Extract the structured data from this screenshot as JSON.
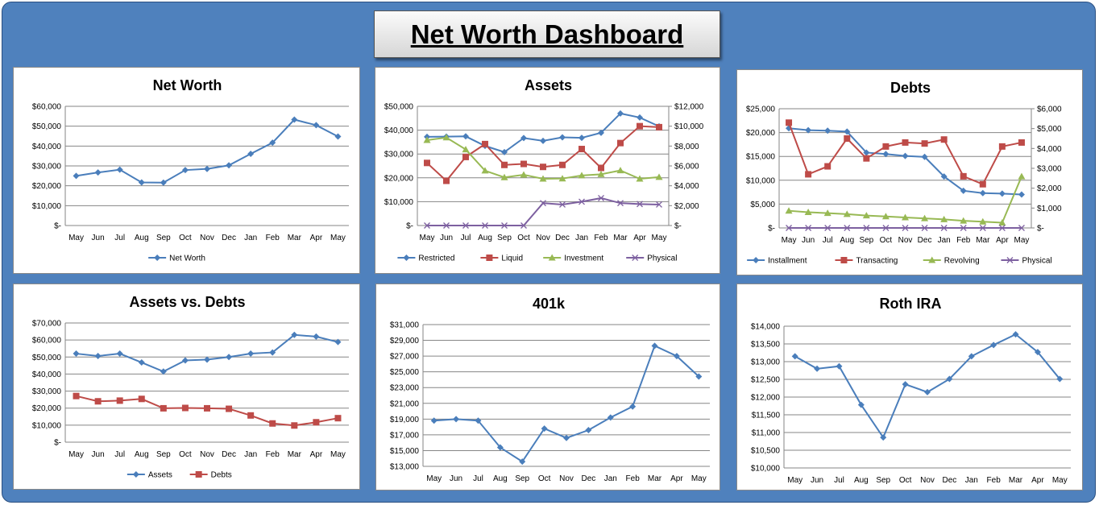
{
  "dashboard": {
    "title": "Net Worth Dashboard"
  },
  "colors": {
    "background": "#4f81bd",
    "blue": "#4a7ebb",
    "red": "#be4b48",
    "green": "#98b954",
    "purple": "#7d60a0"
  },
  "chart_data": [
    {
      "id": "networth",
      "type": "line",
      "title": "Net Worth",
      "categories": [
        "May",
        "Jun",
        "Jul",
        "Aug",
        "Sep",
        "Oct",
        "Nov",
        "Dec",
        "Jan",
        "Feb",
        "Mar",
        "Apr",
        "May"
      ],
      "left_axis": {
        "ylim": [
          0,
          60000
        ],
        "ticks": [
          "$60,000",
          "$50,000",
          "$40,000",
          "$30,000",
          "$20,000",
          "$10,000",
          "$-"
        ]
      },
      "series": [
        {
          "name": "Net Worth",
          "color": "#4a7ebb",
          "marker": "diamond",
          "axis": "left",
          "values": [
            25000,
            26700,
            28100,
            21700,
            21600,
            27900,
            28500,
            30300,
            36100,
            41700,
            53300,
            50500,
            44800
          ]
        }
      ],
      "legend": "bottom"
    },
    {
      "id": "assets",
      "type": "line",
      "title": "Assets",
      "categories": [
        "May",
        "Jun",
        "Jul",
        "Aug",
        "Sep",
        "Oct",
        "Nov",
        "Dec",
        "Jan",
        "Feb",
        "Mar",
        "Apr",
        "May"
      ],
      "left_axis": {
        "ylim": [
          0,
          50000
        ],
        "ticks": [
          "$50,000",
          "$40,000",
          "$30,000",
          "$20,000",
          "$10,000",
          "$-"
        ]
      },
      "right_axis": {
        "ylim": [
          0,
          12000
        ],
        "ticks": [
          "$12,000",
          "$10,000",
          "$8,000",
          "$6,000",
          "$4,000",
          "$2,000",
          "$-"
        ]
      },
      "series": [
        {
          "name": "Restricted",
          "color": "#4a7ebb",
          "marker": "diamond",
          "axis": "left",
          "values": [
            37200,
            37300,
            37400,
            33400,
            30800,
            36700,
            35500,
            37000,
            36800,
            38900,
            47000,
            45300,
            41600
          ]
        },
        {
          "name": "Liquid",
          "color": "#be4b48",
          "marker": "square",
          "axis": "right",
          "values": [
            6300,
            4500,
            6900,
            8200,
            6100,
            6200,
            5900,
            6100,
            7700,
            5800,
            8300,
            10000,
            9900
          ]
        },
        {
          "name": "Investment",
          "color": "#98b954",
          "marker": "triangle",
          "axis": "left",
          "values": [
            35800,
            36900,
            31900,
            23000,
            20200,
            21300,
            19600,
            19700,
            21000,
            21500,
            23100,
            19600,
            20300
          ]
        },
        {
          "name": "Physical",
          "color": "#7d60a0",
          "marker": "x",
          "axis": "left",
          "values": [
            0,
            0,
            0,
            0,
            0,
            0,
            9400,
            8800,
            10000,
            11500,
            9400,
            9000,
            8800
          ]
        }
      ],
      "legend": "bottom"
    },
    {
      "id": "debts",
      "type": "line",
      "title": "Debts",
      "categories": [
        "May",
        "Jun",
        "Jul",
        "Aug",
        "Sep",
        "Oct",
        "Nov",
        "Dec",
        "Jan",
        "Feb",
        "Mar",
        "Apr",
        "May"
      ],
      "left_axis": {
        "ylim": [
          0,
          25000
        ],
        "ticks": [
          "$25,000",
          "$20,000",
          "$15,000",
          "$10,000",
          "$5,000",
          "$-"
        ]
      },
      "right_axis": {
        "ylim": [
          0,
          6000
        ],
        "ticks": [
          "$6,000",
          "$5,000",
          "$4,000",
          "$3,000",
          "$2,000",
          "$1,000",
          "$-"
        ]
      },
      "series": [
        {
          "name": "Installment",
          "color": "#4a7ebb",
          "marker": "diamond",
          "axis": "left",
          "values": [
            20900,
            20500,
            20400,
            20200,
            15800,
            15500,
            15100,
            14900,
            10800,
            7800,
            7300,
            7200,
            7000
          ]
        },
        {
          "name": "Transacting",
          "color": "#be4b48",
          "marker": "square",
          "axis": "right",
          "values": [
            5300,
            2700,
            3100,
            4500,
            3500,
            4100,
            4300,
            4250,
            4450,
            2600,
            2200,
            4100,
            4300
          ]
        },
        {
          "name": "Revolving",
          "color": "#98b954",
          "marker": "triangle",
          "axis": "left",
          "values": [
            3600,
            3300,
            3100,
            2900,
            2600,
            2400,
            2200,
            2000,
            1800,
            1500,
            1300,
            1100,
            10800
          ]
        },
        {
          "name": "Physical",
          "color": "#7d60a0",
          "marker": "x",
          "axis": "left",
          "values": [
            0,
            0,
            0,
            0,
            0,
            0,
            0,
            0,
            0,
            0,
            0,
            0,
            0
          ]
        }
      ],
      "legend": "bottom"
    },
    {
      "id": "avd",
      "type": "line",
      "title": "Assets vs. Debts",
      "categories": [
        "May",
        "Jun",
        "Jul",
        "Aug",
        "Sep",
        "Oct",
        "Nov",
        "Dec",
        "Jan",
        "Feb",
        "Mar",
        "Apr",
        "May"
      ],
      "left_axis": {
        "ylim": [
          0,
          70000
        ],
        "ticks": [
          "$70,000",
          "$60,000",
          "$50,000",
          "$40,000",
          "$30,000",
          "$20,000",
          "$10,000",
          "$-"
        ]
      },
      "series": [
        {
          "name": "Assets",
          "color": "#4a7ebb",
          "marker": "diamond",
          "axis": "left",
          "values": [
            52000,
            50600,
            52000,
            46800,
            41500,
            48000,
            48500,
            50000,
            52000,
            52700,
            63000,
            62000,
            58800
          ]
        },
        {
          "name": "Debts",
          "color": "#be4b48",
          "marker": "square",
          "axis": "left",
          "values": [
            27100,
            24000,
            24400,
            25400,
            19900,
            20100,
            19900,
            19600,
            15700,
            11000,
            9800,
            11700,
            14100
          ]
        }
      ],
      "legend": "bottom"
    },
    {
      "id": "k401",
      "type": "line",
      "title": "401k",
      "categories": [
        "May",
        "Jun",
        "Jul",
        "Aug",
        "Sep",
        "Oct",
        "Nov",
        "Dec",
        "Jan",
        "Feb",
        "Mar",
        "Apr",
        "May"
      ],
      "left_axis": {
        "ylim": [
          13000,
          31000
        ],
        "ticks": [
          "$31,000",
          "$29,000",
          "$27,000",
          "$25,000",
          "$23,000",
          "$21,000",
          "$19,000",
          "$17,000",
          "$15,000",
          "$13,000"
        ]
      },
      "series": [
        {
          "name": "",
          "color": "#4a7ebb",
          "marker": "diamond",
          "axis": "left",
          "values": [
            18800,
            19000,
            18800,
            15400,
            13600,
            17800,
            16600,
            17600,
            19200,
            20600,
            28300,
            27000,
            24400
          ]
        }
      ],
      "legend": "none"
    },
    {
      "id": "roth",
      "type": "line",
      "title": "Roth IRA",
      "categories": [
        "May",
        "Jun",
        "Jul",
        "Aug",
        "Sep",
        "Oct",
        "Nov",
        "Dec",
        "Jan",
        "Feb",
        "Mar",
        "Apr",
        "May"
      ],
      "left_axis": {
        "ylim": [
          10000,
          14000
        ],
        "ticks": [
          "$14,000",
          "$13,500",
          "$13,000",
          "$12,500",
          "$12,000",
          "$11,500",
          "$11,000",
          "$10,500",
          "$10,000"
        ]
      },
      "series": [
        {
          "name": "",
          "color": "#4a7ebb",
          "marker": "diamond",
          "axis": "left",
          "values": [
            13150,
            12800,
            12870,
            11780,
            10860,
            12360,
            12140,
            12510,
            13150,
            13470,
            13770,
            13270,
            12510
          ]
        }
      ],
      "legend": "none"
    }
  ]
}
